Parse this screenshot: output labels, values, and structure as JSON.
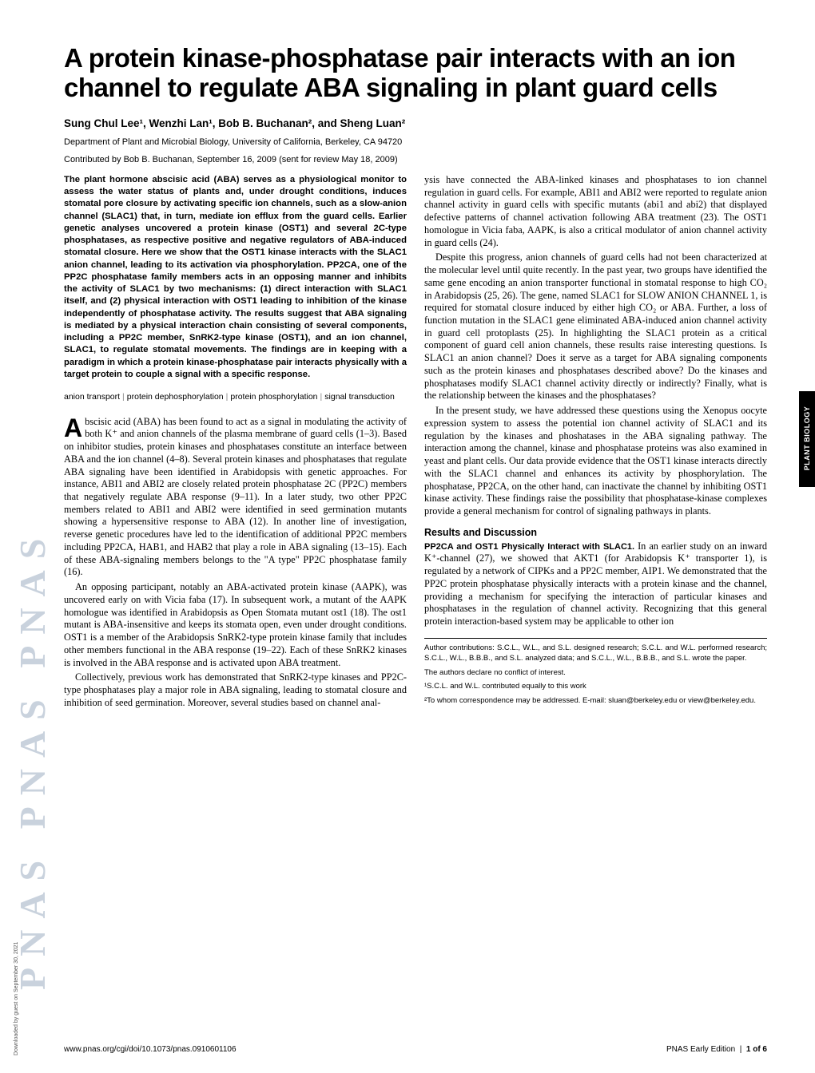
{
  "title": "A protein kinase-phosphatase pair interacts with an ion channel to regulate ABA signaling in plant guard cells",
  "authors_html": "Sung Chul Lee¹, Wenzhi Lan¹, Bob B. Buchanan², and Sheng Luan²",
  "affiliation": "Department of Plant and Microbial Biology, University of California, Berkeley, CA 94720",
  "contributed": "Contributed by Bob B. Buchanan, September 16, 2009 (sent for review May 18, 2009)",
  "abstract": "The plant hormone abscisic acid (ABA) serves as a physiological monitor to assess the water status of plants and, under drought conditions, induces stomatal pore closure by activating specific ion channels, such as a slow-anion channel (SLAC1) that, in turn, mediate ion efflux from the guard cells. Earlier genetic analyses uncovered a protein kinase (OST1) and several 2C-type phosphatases, as respective positive and negative regulators of ABA-induced stomatal closure. Here we show that the OST1 kinase interacts with the SLAC1 anion channel, leading to its activation via phosphorylation. PP2CA, one of the PP2C phosphatase family members acts in an opposing manner and inhibits the activity of SLAC1 by two mechanisms: (1) direct interaction with SLAC1 itself, and (2) physical interaction with OST1 leading to inhibition of the kinase independently of phosphatase activity. The results suggest that ABA signaling is mediated by a physical interaction chain consisting of several components, including a PP2C member, SnRK2-type kinase (OST1), and an ion channel, SLAC1, to regulate stomatal movements. The findings are in keeping with a paradigm in which a protein kinase-phosphatase pair interacts physically with a target protein to couple a signal with a specific response.",
  "keywords": [
    "anion transport",
    "protein dephosphorylation",
    "protein phosphorylation",
    "signal transduction"
  ],
  "dropcap": "A",
  "para1_rest": "bscisic acid (ABA) has been found to act as a signal in modulating the activity of both K⁺ and anion channels of the plasma membrane of guard cells (1–3). Based on inhibitor studies, protein kinases and phosphatases constitute an interface between ABA and the ion channel (4–8). Several protein kinases and phosphatases that regulate ABA signaling have been identified in Arabidopsis with genetic approaches. For instance, ABI1 and ABI2 are closely related protein phosphatase 2C (PP2C) members that negatively regulate ABA response (9–11). In a later study, two other PP2C members related to ABI1 and ABI2 were identified in seed germination mutants showing a hypersensitive response to ABA (12). In another line of investigation, reverse genetic procedures have led to the identification of additional PP2C members including PP2CA, HAB1, and HAB2 that play a role in ABA signaling (13–15). Each of these ABA-signaling members belongs to the \"A type\" PP2C phosphatase family (16).",
  "para2": "An opposing participant, notably an ABA-activated protein kinase (AAPK), was uncovered early on with Vicia faba (17). In subsequent work, a mutant of the AAPK homologue was identified in Arabidopsis as Open Stomata mutant ost1 (18). The ost1 mutant is ABA-insensitive and keeps its stomata open, even under drought conditions. OST1 is a member of the Arabidopsis SnRK2-type protein kinase family that includes other members functional in the ABA response (19–22). Each of these SnRK2 kinases is involved in the ABA response and is activated upon ABA treatment.",
  "para3": "Collectively, previous work has demonstrated that SnRK2-type kinases and PP2C-type phosphatases play a major role in ABA signaling, leading to stomatal closure and inhibition of seed germination. Moreover, several studies based on channel anal-",
  "para4": "ysis have connected the ABA-linked kinases and phosphatases to ion channel regulation in guard cells. For example, ABI1 and ABI2 were reported to regulate anion channel activity in guard cells with specific mutants (abi1 and abi2) that displayed defective patterns of channel activation following ABA treatment (23). The OST1 homologue in Vicia faba, AAPK, is also a critical modulator of anion channel activity in guard cells (24).",
  "para5": "Despite this progress, anion channels of guard cells had not been characterized at the molecular level until quite recently. In the past year, two groups have identified the same gene encoding an anion transporter functional in stomatal response to high CO₂ in Arabidopsis (25, 26). The gene, named SLAC1 for SLOW ANION CHANNEL 1, is required for stomatal closure induced by either high CO₂ or ABA. Further, a loss of function mutation in the SLAC1 gene eliminated ABA-induced anion channel activity in guard cell protoplasts (25). In highlighting the SLAC1 protein as a critical component of guard cell anion channels, these results raise interesting questions. Is SLAC1 an anion channel? Does it serve as a target for ABA signaling components such as the protein kinases and phosphatases described above? Do the kinases and phosphatases modify SLAC1 channel activity directly or indirectly? Finally, what is the relationship between the kinases and the phosphatases?",
  "para6": "In the present study, we have addressed these questions using the Xenopus oocyte expression system to assess the potential ion channel activity of SLAC1 and its regulation by the kinases and phoshatases in the ABA signaling pathway. The interaction among the channel, kinase and phosphatase proteins was also examined in yeast and plant cells. Our data provide evidence that the OST1 kinase interacts directly with the SLAC1 channel and enhances its activity by phosphorylation. The phosphatase, PP2CA, on the other hand, can inactivate the channel by inhibiting OST1 kinase activity. These findings raise the possibility that phosphatase-kinase complexes provide a general mechanism for control of signaling pathways in plants.",
  "results_head": "Results and Discussion",
  "runin": "PP2CA and OST1 Physically Interact with SLAC1.",
  "para7": " In an earlier study on an inward K⁺-channel (27), we showed that AKT1 (for Arabidopsis K⁺ transporter 1), is regulated by a network of CIPKs and a PP2C member, AIP1. We demonstrated that the PP2C protein phosphatase physically interacts with a protein kinase and the channel, providing a mechanism for specifying the interaction of particular kinases and phosphatases in the regulation of channel activity. Recognizing that this general protein interaction-based system may be applicable to other ion",
  "fn1": "Author contributions: S.C.L., W.L., and S.L. designed research; S.C.L. and W.L. performed research; S.C.L., W.L., B.B.B., and S.L. analyzed data; and S.C.L., W.L., B.B.B., and S.L. wrote the paper.",
  "fn2": "The authors declare no conflict of interest.",
  "fn3": "¹S.C.L. and W.L. contributed equally to this work",
  "fn4": "²To whom correspondence may be addressed. E-mail: sluan@berkeley.edu or view@berkeley.edu.",
  "footer_left": "www.pnas.org/cgi/doi/10.1073/pnas.0910601106",
  "footer_right_a": "PNAS Early Edition",
  "footer_right_b": "1 of 6",
  "side_logo": "PNAS  PNAS  PNAS",
  "side_tab": "PLANT BIOLOGY",
  "downloaded": "Downloaded by guest on September 30, 2021"
}
